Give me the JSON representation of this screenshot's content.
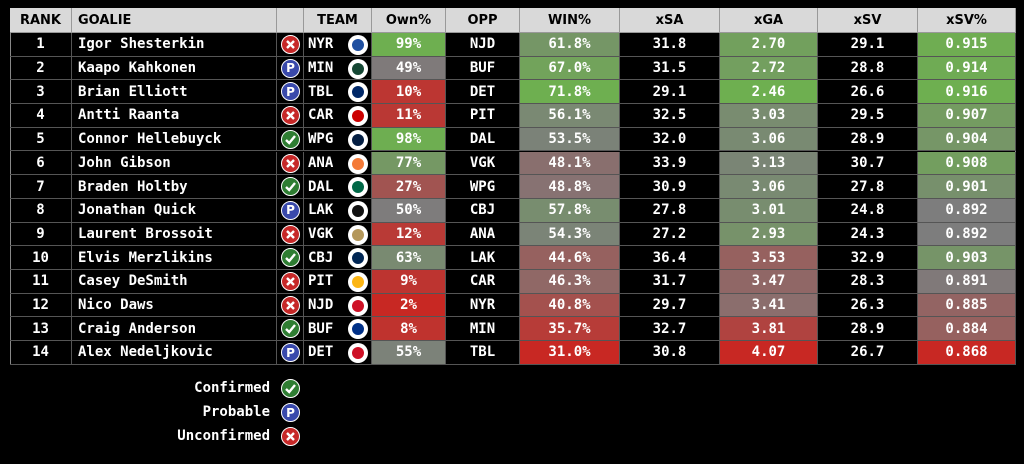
{
  "table": {
    "columns": [
      "RANK",
      "GOALIE",
      "TEAM",
      "Own%",
      "OPP",
      "WIN%",
      "xSA",
      "xGA",
      "xSV",
      "xSV%"
    ],
    "rows": [
      {
        "rank": "1",
        "goalie": "Igor Shesterkin",
        "status": "Unconfirmed",
        "team": "NYR",
        "own": "99%",
        "opp": "NJD",
        "win": "61.8%",
        "xsa": "31.8",
        "xga": "2.70",
        "xsv": "29.1",
        "xsvp": "0.915"
      },
      {
        "rank": "2",
        "goalie": "Kaapo Kahkonen",
        "status": "Probable",
        "team": "MIN",
        "own": "49%",
        "opp": "BUF",
        "win": "67.0%",
        "xsa": "31.5",
        "xga": "2.72",
        "xsv": "28.8",
        "xsvp": "0.914"
      },
      {
        "rank": "3",
        "goalie": "Brian Elliott",
        "status": "Probable",
        "team": "TBL",
        "own": "10%",
        "opp": "DET",
        "win": "71.8%",
        "xsa": "29.1",
        "xga": "2.46",
        "xsv": "26.6",
        "xsvp": "0.916"
      },
      {
        "rank": "4",
        "goalie": "Antti Raanta",
        "status": "Unconfirmed",
        "team": "CAR",
        "own": "11%",
        "opp": "PIT",
        "win": "56.1%",
        "xsa": "32.5",
        "xga": "3.03",
        "xsv": "29.5",
        "xsvp": "0.907"
      },
      {
        "rank": "5",
        "goalie": "Connor Hellebuyck",
        "status": "Confirmed",
        "team": "WPG",
        "own": "98%",
        "opp": "DAL",
        "win": "53.5%",
        "xsa": "32.0",
        "xga": "3.06",
        "xsv": "28.9",
        "xsvp": "0.904"
      },
      {
        "rank": "6",
        "goalie": "John Gibson",
        "status": "Unconfirmed",
        "team": "ANA",
        "own": "77%",
        "opp": "VGK",
        "win": "48.1%",
        "xsa": "33.9",
        "xga": "3.13",
        "xsv": "30.7",
        "xsvp": "0.908"
      },
      {
        "rank": "7",
        "goalie": "Braden Holtby",
        "status": "Confirmed",
        "team": "DAL",
        "own": "27%",
        "opp": "WPG",
        "win": "48.8%",
        "xsa": "30.9",
        "xga": "3.06",
        "xsv": "27.8",
        "xsvp": "0.901"
      },
      {
        "rank": "8",
        "goalie": "Jonathan Quick",
        "status": "Probable",
        "team": "LAK",
        "own": "50%",
        "opp": "CBJ",
        "win": "57.8%",
        "xsa": "27.8",
        "xga": "3.01",
        "xsv": "24.8",
        "xsvp": "0.892"
      },
      {
        "rank": "9",
        "goalie": "Laurent Brossoit",
        "status": "Unconfirmed",
        "team": "VGK",
        "own": "12%",
        "opp": "ANA",
        "win": "54.3%",
        "xsa": "27.2",
        "xga": "2.93",
        "xsv": "24.3",
        "xsvp": "0.892"
      },
      {
        "rank": "10",
        "goalie": "Elvis Merzlikins",
        "status": "Confirmed",
        "team": "CBJ",
        "own": "63%",
        "opp": "LAK",
        "win": "44.6%",
        "xsa": "36.4",
        "xga": "3.53",
        "xsv": "32.9",
        "xsvp": "0.903"
      },
      {
        "rank": "11",
        "goalie": "Casey DeSmith",
        "status": "Unconfirmed",
        "team": "PIT",
        "own": "9%",
        "opp": "CAR",
        "win": "46.3%",
        "xsa": "31.7",
        "xga": "3.47",
        "xsv": "28.3",
        "xsvp": "0.891"
      },
      {
        "rank": "12",
        "goalie": "Nico Daws",
        "status": "Unconfirmed",
        "team": "NJD",
        "own": "2%",
        "opp": "NYR",
        "win": "40.8%",
        "xsa": "29.7",
        "xga": "3.41",
        "xsv": "26.3",
        "xsvp": "0.885"
      },
      {
        "rank": "13",
        "goalie": "Craig Anderson",
        "status": "Confirmed",
        "team": "BUF",
        "own": "8%",
        "opp": "MIN",
        "win": "35.7%",
        "xsa": "32.7",
        "xga": "3.81",
        "xsv": "28.9",
        "xsvp": "0.884"
      },
      {
        "rank": "14",
        "goalie": "Alex Nedeljkovic",
        "status": "Probable",
        "team": "DET",
        "own": "55%",
        "opp": "TBL",
        "win": "31.0%",
        "xsa": "30.8",
        "xga": "4.07",
        "xsv": "26.7",
        "xsvp": "0.868"
      }
    ]
  },
  "legend": [
    {
      "label": "Confirmed"
    },
    {
      "label": "Probable",
      "icon_text": "P"
    },
    {
      "label": "Unconfirmed"
    }
  ]
}
